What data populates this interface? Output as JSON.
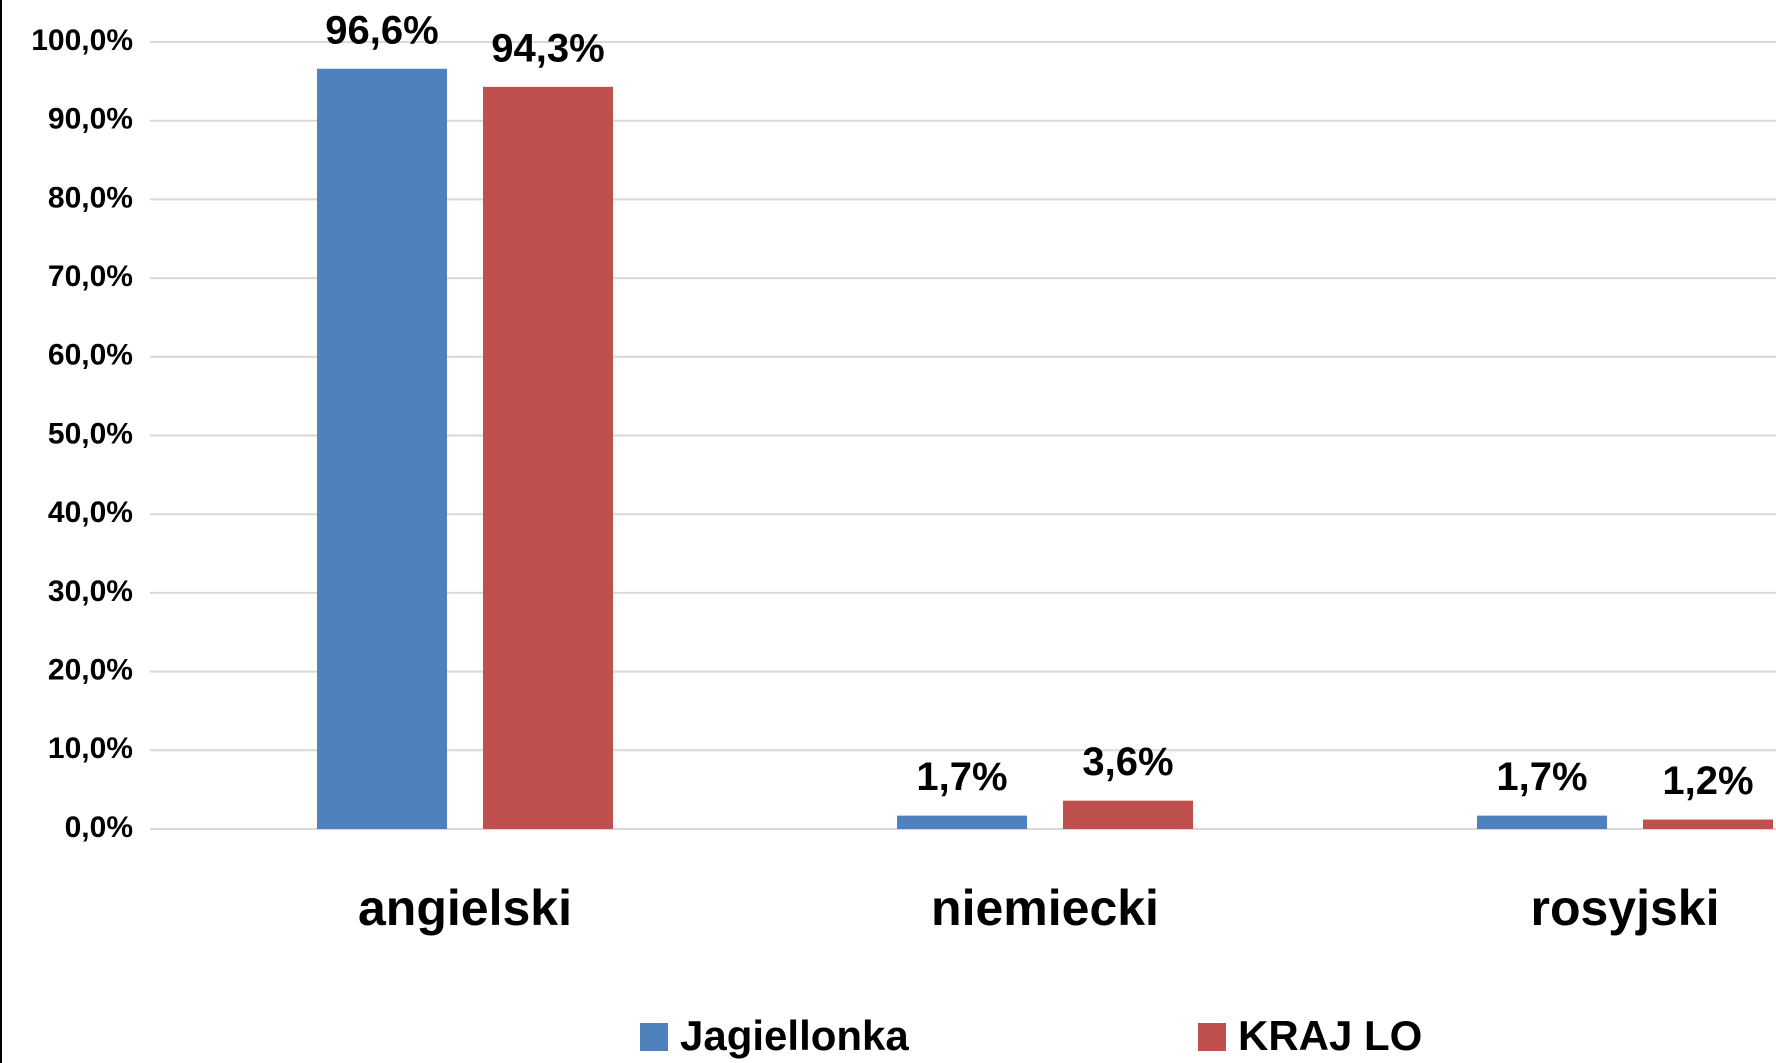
{
  "chart_data": {
    "type": "bar",
    "categories": [
      "angielski",
      "niemiecki",
      "rosyjski"
    ],
    "series": [
      {
        "name": "Jagiellonka",
        "color": "#4f81bd",
        "values": [
          96.6,
          1.7,
          1.7
        ],
        "value_labels": [
          "96,6%",
          "1,7%",
          "1,7%"
        ]
      },
      {
        "name": "KRAJ LO",
        "color": "#c0504d",
        "values": [
          94.3,
          3.6,
          1.2
        ],
        "value_labels": [
          "94,3%",
          "3,6%",
          "1,2%"
        ]
      }
    ],
    "ylim": [
      0,
      100
    ],
    "yticks": [
      {
        "value": 0,
        "label": "0,0%"
      },
      {
        "value": 10,
        "label": "10,0%"
      },
      {
        "value": 20,
        "label": "20,0%"
      },
      {
        "value": 30,
        "label": "30,0%"
      },
      {
        "value": 40,
        "label": "40,0%"
      },
      {
        "value": 50,
        "label": "50,0%"
      },
      {
        "value": 60,
        "label": "60,0%"
      },
      {
        "value": 70,
        "label": "70,0%"
      },
      {
        "value": 80,
        "label": "80,0%"
      },
      {
        "value": 90,
        "label": "90,0%"
      },
      {
        "value": 100,
        "label": "100,0%"
      }
    ],
    "grid": true,
    "legend": "bottom"
  }
}
